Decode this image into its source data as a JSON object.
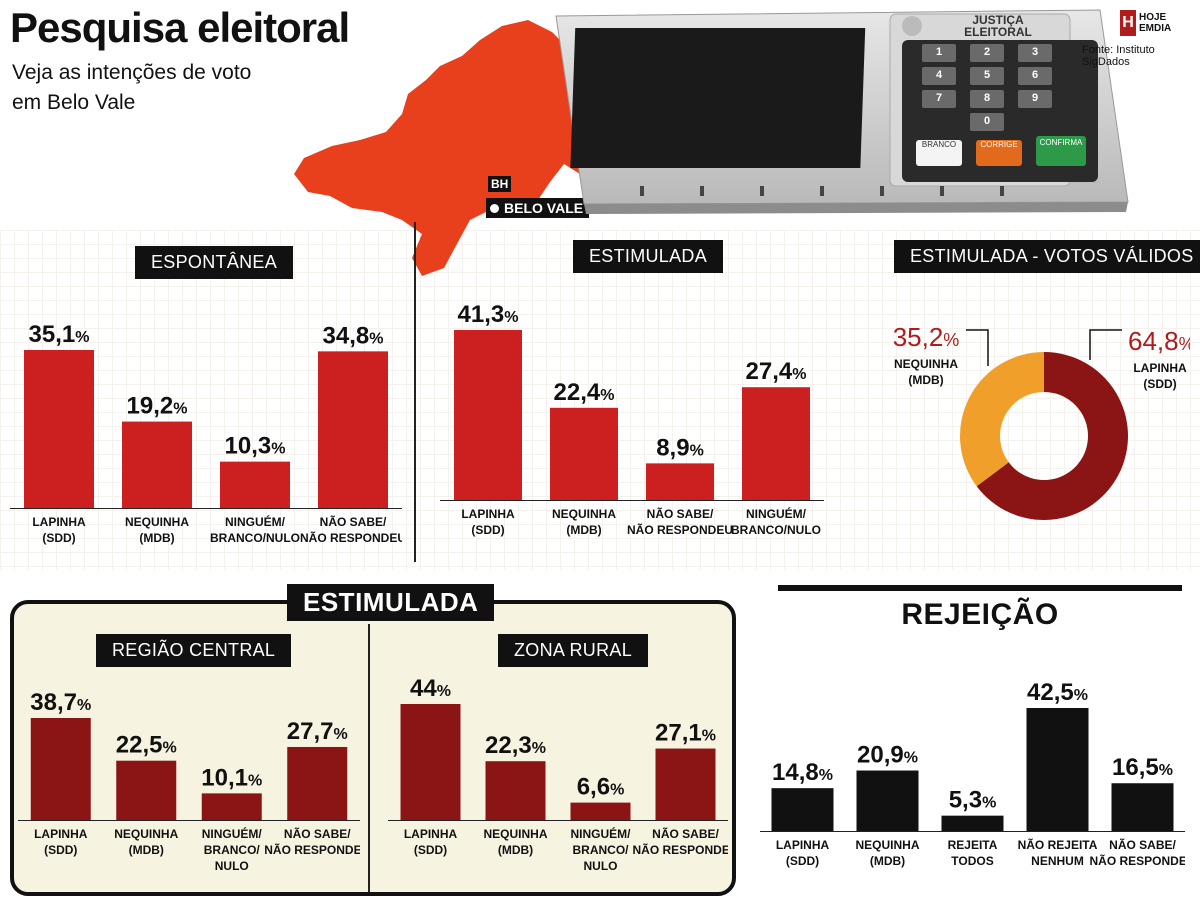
{
  "header": {
    "title": "Pesquisa eleitoral",
    "subtitle": "Veja as intenções de voto em Belo Vale",
    "source": "Fonte: Instituto SigDados",
    "logo_line1": "HOJE",
    "logo_line2": "EMDIA",
    "logo_mark": "H"
  },
  "map": {
    "color": "#e8401c",
    "label_bh": "BH",
    "label_city": "BELO VALE"
  },
  "machine": {
    "label_line1": "JUSTIÇA",
    "label_line2": "ELEITORAL",
    "keys": [
      "1",
      "2",
      "3",
      "4",
      "5",
      "6",
      "7",
      "8",
      "9",
      "0"
    ],
    "btn_branco": "BRANCO",
    "btn_corrige": "CORRIGE",
    "btn_confirma": "CONFIRMA"
  },
  "sections": {
    "espontanea": "ESPONTÂNEA",
    "estimulada": "ESTIMULADA",
    "votos_validos": "ESTIMULADA - VOTOS VÁLIDOS",
    "estimulada_main": "ESTIMULADA",
    "regiao_central": "REGIÃO CENTRAL",
    "zona_rural": "ZONA RURAL",
    "rejeicao": "REJEIÇÃO"
  },
  "colors": {
    "red_bar": "#cc1f1f",
    "dark_red_bar": "#8b1414",
    "black_bar": "#111111",
    "donut_lapinha": "#8b1414",
    "donut_nequinha": "#f0a02a",
    "donut_label": "#b01c1c"
  },
  "chart_data": [
    {
      "id": "espontanea",
      "type": "bar",
      "categories": [
        [
          "LAPINHA",
          "(SDD)"
        ],
        [
          "NEQUINHA",
          "(MDB)"
        ],
        [
          "NINGUÉM/",
          "BRANCO/NULO"
        ],
        [
          "NÃO SABE/",
          "NÃO RESPONDEU"
        ]
      ],
      "values": [
        35.1,
        19.2,
        10.3,
        34.8
      ],
      "labels": [
        "35,1",
        "19,2",
        "10,3",
        "34,8"
      ]
    },
    {
      "id": "estimulada",
      "type": "bar",
      "categories": [
        [
          "LAPINHA",
          "(SDD)"
        ],
        [
          "NEQUINHA",
          "(MDB)"
        ],
        [
          "NÃO SABE/",
          "NÃO RESPONDEU"
        ],
        [
          "NINGUÉM/",
          "BRANCO/NULO"
        ]
      ],
      "values": [
        41.3,
        22.4,
        8.9,
        27.4
      ],
      "labels": [
        "41,3",
        "22,4",
        "8,9",
        "27,4"
      ]
    },
    {
      "id": "votos_validos",
      "type": "pie",
      "slices": [
        {
          "name": [
            "LAPINHA",
            "(SDD)"
          ],
          "value": 64.8,
          "label": "64,8"
        },
        {
          "name": [
            "NEQUINHA",
            "(MDB)"
          ],
          "value": 35.2,
          "label": "35,2"
        }
      ]
    },
    {
      "id": "regiao_central",
      "type": "bar",
      "categories": [
        [
          "LAPINHA",
          "(SDD)"
        ],
        [
          "NEQUINHA",
          "(MDB)"
        ],
        [
          "NINGUÉM/",
          "BRANCO/",
          "NULO"
        ],
        [
          "NÃO SABE/",
          "NÃO RESPONDEU"
        ]
      ],
      "values": [
        38.7,
        22.5,
        10.1,
        27.7
      ],
      "labels": [
        "38,7",
        "22,5",
        "10,1",
        "27,7"
      ]
    },
    {
      "id": "zona_rural",
      "type": "bar",
      "categories": [
        [
          "LAPINHA",
          "(SDD)"
        ],
        [
          "NEQUINHA",
          "(MDB)"
        ],
        [
          "NINGUÉM/",
          "BRANCO/",
          "NULO"
        ],
        [
          "NÃO SABE/",
          "NÃO RESPONDEU"
        ]
      ],
      "values": [
        44,
        22.3,
        6.6,
        27.1
      ],
      "labels": [
        "44",
        "22,3",
        "6,6",
        "27,1"
      ]
    },
    {
      "id": "rejeicao",
      "type": "bar",
      "categories": [
        [
          "LAPINHA",
          "(SDD)"
        ],
        [
          "NEQUINHA",
          "(MDB)"
        ],
        [
          "REJEITA",
          "TODOS"
        ],
        [
          "NÃO REJEITA",
          "NENHUM"
        ],
        [
          "NÃO SABE/",
          "NÃO RESPONDEU"
        ]
      ],
      "values": [
        14.8,
        20.9,
        5.3,
        42.5,
        16.5
      ],
      "labels": [
        "14,8",
        "20,9",
        "5,3",
        "42,5",
        "16,5"
      ]
    }
  ]
}
